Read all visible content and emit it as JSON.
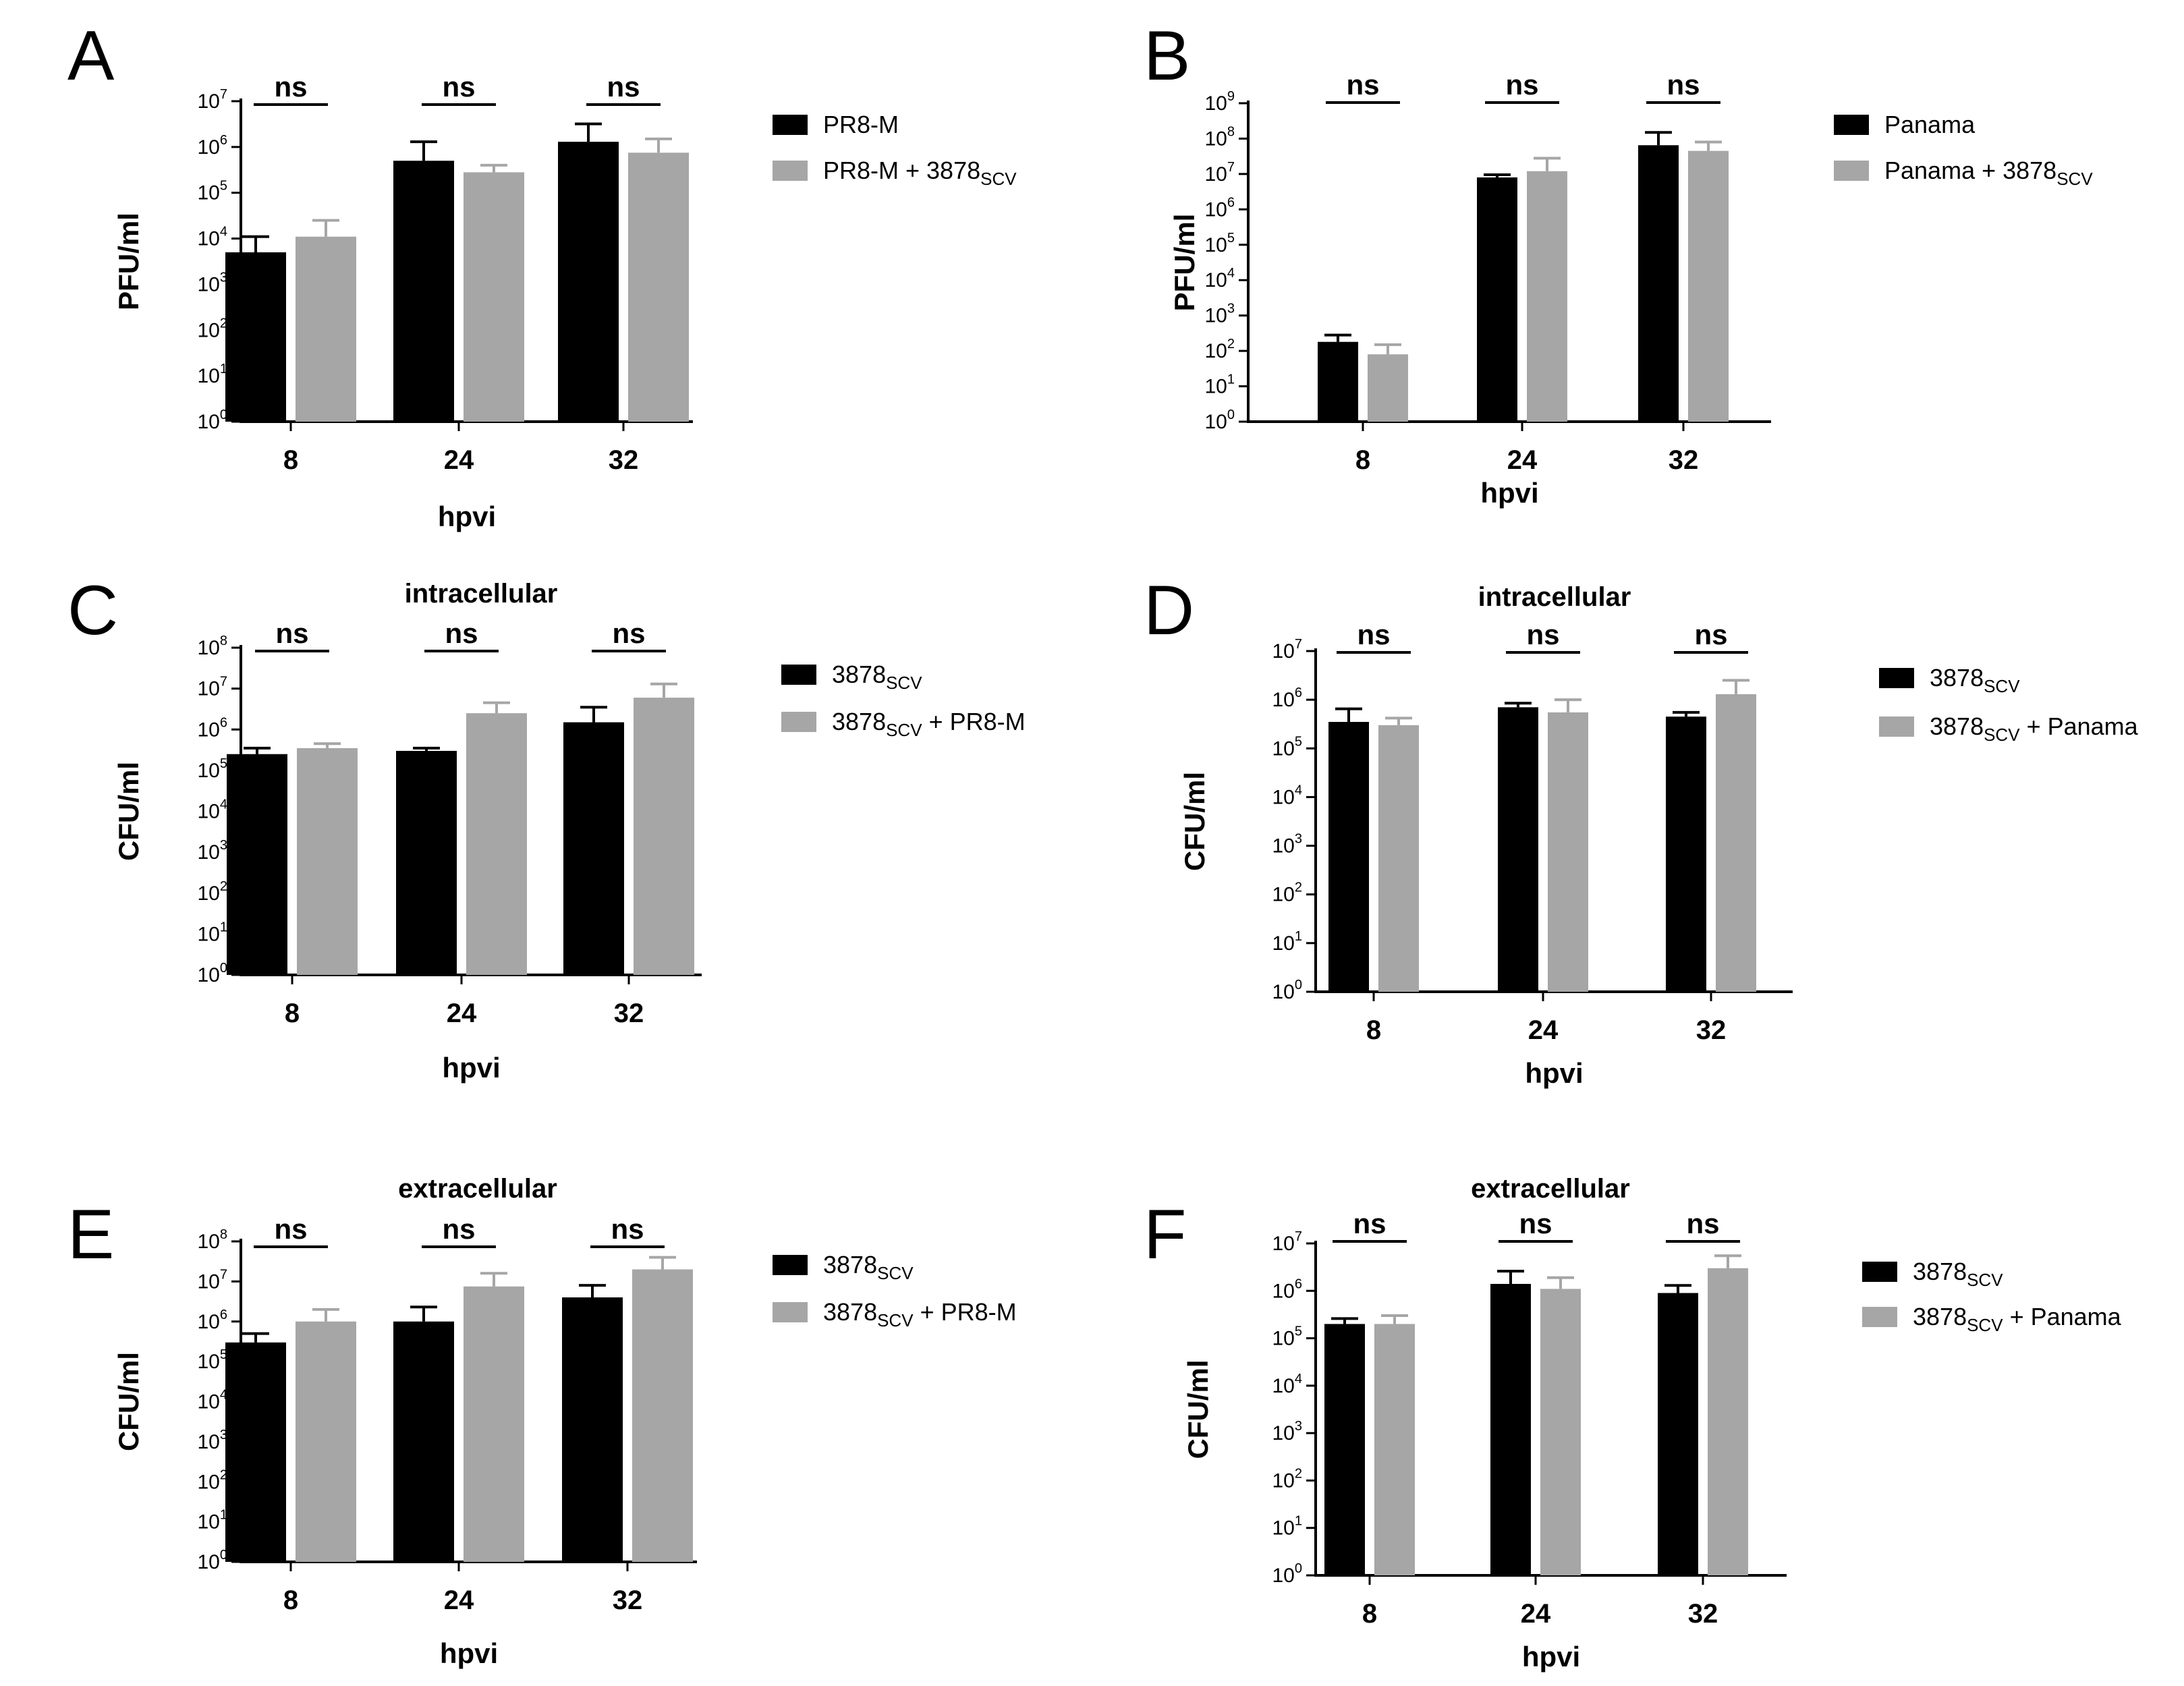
{
  "colors": {
    "series1": "#000000",
    "series2": "#a6a6a6"
  },
  "chart_data": [
    {
      "panel": "A",
      "type": "bar",
      "title": "",
      "xlabel": "hpvi",
      "ylabel": "PFU/ml",
      "yscale": "log",
      "ylim_exponent": [
        0,
        7
      ],
      "categories": [
        "8",
        "24",
        "32"
      ],
      "series": [
        {
          "name": "PR8-M",
          "name_sub": "",
          "values": [
            5000,
            500000,
            1300000
          ],
          "errors": [
            11000,
            1300000,
            3200000
          ]
        },
        {
          "name": "PR8-M + 3878",
          "name_sub": "SCV",
          "values": [
            11000,
            280000,
            750000
          ],
          "errors": [
            25000,
            400000,
            1500000
          ]
        }
      ],
      "significance": [
        "ns",
        "ns",
        "ns"
      ]
    },
    {
      "panel": "B",
      "type": "bar",
      "title": "",
      "xlabel": "hpvi",
      "ylabel": "PFU/ml",
      "yscale": "log",
      "ylim_exponent": [
        0,
        9
      ],
      "categories": [
        "8",
        "24",
        "32"
      ],
      "series": [
        {
          "name": "Panama",
          "name_sub": "",
          "values": [
            180,
            8000000,
            65000000
          ],
          "errors": [
            280,
            9500000,
            150000000
          ]
        },
        {
          "name": "Panama + 3878",
          "name_sub": "SCV",
          "values": [
            80,
            12000000,
            45000000
          ],
          "errors": [
            150,
            28000000,
            80000000
          ]
        }
      ],
      "significance": [
        "ns",
        "ns",
        "ns"
      ]
    },
    {
      "panel": "C",
      "type": "bar",
      "title": "intracellular",
      "xlabel": "hpvi",
      "ylabel": "CFU/ml",
      "yscale": "log",
      "ylim_exponent": [
        0,
        8
      ],
      "categories": [
        "8",
        "24",
        "32"
      ],
      "series": [
        {
          "name": "3878",
          "name_sub": "SCV",
          "name_after": "",
          "values": [
            250000,
            300000,
            1500000
          ],
          "errors": [
            350000,
            350000,
            3500000
          ]
        },
        {
          "name": "3878",
          "name_sub": "SCV",
          "name_after": "+ PR8-M",
          "values": [
            350000,
            2500000,
            6000000
          ],
          "errors": [
            450000,
            4500000,
            13000000
          ]
        }
      ],
      "significance": [
        "ns",
        "ns",
        "ns"
      ]
    },
    {
      "panel": "D",
      "type": "bar",
      "title": "intracellular",
      "xlabel": "hpvi",
      "ylabel": "CFU/ml",
      "yscale": "log",
      "ylim_exponent": [
        0,
        7
      ],
      "categories": [
        "8",
        "24",
        "32"
      ],
      "series": [
        {
          "name": "3878",
          "name_sub": "SCV",
          "name_after": "",
          "values": [
            350000,
            700000,
            450000
          ],
          "errors": [
            650000,
            850000,
            550000
          ]
        },
        {
          "name": "3878",
          "name_sub": "SCV",
          "name_after": "+ Panama",
          "values": [
            300000,
            550000,
            1300000
          ],
          "errors": [
            420000,
            1000000,
            2500000
          ]
        }
      ],
      "significance": [
        "ns",
        "ns",
        "ns"
      ]
    },
    {
      "panel": "E",
      "type": "bar",
      "title": "extracellular",
      "xlabel": "hpvi",
      "ylabel": "CFU/ml",
      "yscale": "log",
      "ylim_exponent": [
        0,
        8
      ],
      "categories": [
        "8",
        "24",
        "32"
      ],
      "series": [
        {
          "name": "3878",
          "name_sub": "SCV",
          "name_after": "",
          "values": [
            300000,
            1000000,
            4000000
          ],
          "errors": [
            500000,
            2300000,
            8000000
          ]
        },
        {
          "name": "3878",
          "name_sub": "SCV",
          "name_after": "+ PR8-M",
          "values": [
            1000000,
            7500000,
            20000000
          ],
          "errors": [
            2000000,
            16000000,
            40000000
          ]
        }
      ],
      "significance": [
        "ns",
        "ns",
        "ns"
      ]
    },
    {
      "panel": "F",
      "type": "bar",
      "title": "extracellular",
      "xlabel": "hpvi",
      "ylabel": "CFU/ml",
      "yscale": "log",
      "ylim_exponent": [
        0,
        7
      ],
      "categories": [
        "8",
        "24",
        "32"
      ],
      "series": [
        {
          "name": "3878",
          "name_sub": "SCV",
          "name_after": "",
          "values": [
            200000,
            1400000,
            900000
          ],
          "errors": [
            260000,
            2600000,
            1300000
          ]
        },
        {
          "name": "3878",
          "name_sub": "SCV",
          "name_after": "+ Panama",
          "values": [
            200000,
            1100000,
            3000000
          ],
          "errors": [
            300000,
            1900000,
            5500000
          ]
        }
      ],
      "significance": [
        "ns",
        "ns",
        "ns"
      ]
    }
  ]
}
